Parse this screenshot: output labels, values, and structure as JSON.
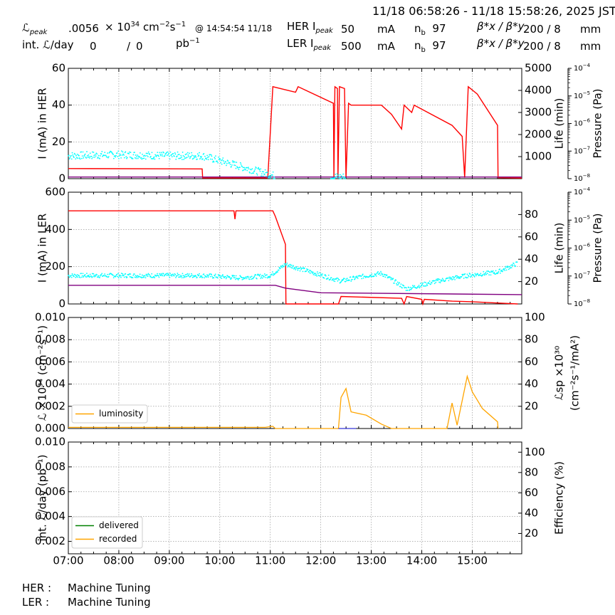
{
  "header": {
    "time_range": "11/18 06:58:26 - 11/18 15:58:26, 2025 JST",
    "lum_peak_label": "ℒ",
    "lum_peak_sub": "peak",
    "lum_peak_value": ".0056",
    "lum_peak_unit_pre": "× 10",
    "lum_peak_unit_exp": "34",
    "lum_peak_unit_post": " cm",
    "lum_peak_unit_exp2": "−2",
    "lum_peak_unit_post2": "s",
    "lum_peak_unit_exp3": "−1",
    "lum_peak_time": "@ 14:54:54 11/18",
    "int_lum_label": "int. ℒ/day",
    "int_lum_value1": "0",
    "int_lum_sep": "/",
    "int_lum_value2": "0",
    "int_lum_unit": "pb",
    "int_lum_unit_exp": "−1",
    "her_label": "HER I",
    "her_sub": "peak",
    "her_value": "50",
    "her_unit": "mA",
    "her_nb_label": "n",
    "her_nb_sub": "b",
    "her_nb_value": "97",
    "her_beta_label": "β*x / β*y",
    "her_beta_value": "200  / 8",
    "her_beta_unit": "mm",
    "ler_label": "LER I",
    "ler_sub": "peak",
    "ler_value": "500",
    "ler_unit": "mA",
    "ler_nb_label": "n",
    "ler_nb_sub": "b",
    "ler_nb_value": "97",
    "ler_beta_label": "β*x / β*y",
    "ler_beta_value": "200  / 8",
    "ler_beta_unit": "mm"
  },
  "footer": {
    "her_label": "HER :",
    "her_status": "Machine Tuning",
    "ler_label": "LER :",
    "ler_status": "Machine Tuning"
  },
  "colors": {
    "current": "#ff0000",
    "lifetime": "#00ffff",
    "pressure": "#800080",
    "luminosity": "#ffa500",
    "delivered": "#008000",
    "recorded": "#ffa500",
    "spec": "#0000cc",
    "grid": "#888888"
  },
  "chart_data": [
    {
      "type": "line",
      "panel": "her",
      "ylabel": "I (mA) in HER",
      "ylim": [
        0,
        60
      ],
      "yticks": [
        "0",
        "20",
        "40",
        "60"
      ],
      "y2label": "Life (min)",
      "y2lim": [
        0,
        5000
      ],
      "y2ticks": [
        "1000",
        "2000",
        "3000",
        "4000",
        "5000"
      ],
      "y3label": "Pressure (Pa)",
      "y3ticks": [
        "10",
        "10",
        "10",
        "10",
        "10"
      ],
      "y3ticks_exp": [
        "−8",
        "−7",
        "−6",
        "−5",
        "−4"
      ],
      "series": [
        {
          "role": "current",
          "points": [
            [
              7.0,
              5.5
            ],
            [
              9.65,
              5.3
            ],
            [
              9.66,
              0.4
            ],
            [
              10.95,
              0.4
            ],
            [
              11.05,
              50
            ],
            [
              11.5,
              47
            ],
            [
              11.55,
              50
            ],
            [
              12.25,
              41
            ],
            [
              12.26,
              0.5
            ],
            [
              12.28,
              50
            ],
            [
              12.33,
              49
            ],
            [
              12.34,
              0.5
            ],
            [
              12.37,
              50
            ],
            [
              12.47,
              49
            ],
            [
              12.5,
              0.5
            ],
            [
              12.55,
              41
            ],
            [
              12.6,
              40
            ],
            [
              12.9,
              40
            ],
            [
              13.2,
              40
            ],
            [
              13.4,
              35
            ],
            [
              13.6,
              27
            ],
            [
              13.65,
              40
            ],
            [
              13.8,
              36
            ],
            [
              13.85,
              40
            ],
            [
              14.6,
              29
            ],
            [
              14.8,
              23
            ],
            [
              14.85,
              0.5
            ],
            [
              14.92,
              50
            ],
            [
              15.1,
              46
            ],
            [
              15.5,
              29
            ],
            [
              15.51,
              0.5
            ],
            [
              15.98,
              0.3
            ]
          ]
        },
        {
          "role": "pressure_her",
          "points": [
            [
              7.0,
              0.9
            ],
            [
              15.98,
              0.9
            ]
          ]
        },
        {
          "role": "lifetime_her_scatter",
          "points": [
            [
              7.0,
              1000
            ],
            [
              8.0,
              1050
            ],
            [
              9.0,
              1000
            ],
            [
              9.65,
              1000
            ],
            [
              11.1,
              80
            ],
            [
              12.2,
              50
            ],
            [
              12.5,
              40
            ],
            [
              13.5,
              30
            ],
            [
              15.0,
              25
            ],
            [
              15.9,
              30
            ]
          ]
        }
      ]
    },
    {
      "type": "line",
      "panel": "ler",
      "ylabel": "I (mA) in LER",
      "ylim": [
        0,
        600
      ],
      "yticks": [
        "0",
        "200",
        "400",
        "600"
      ],
      "y2label": "Life (min)",
      "y2lim": [
        0,
        100
      ],
      "y2ticks": [
        "20",
        "40",
        "60",
        "80"
      ],
      "y3label": "Pressure (Pa)",
      "y3ticks": [
        "10",
        "10",
        "10",
        "10",
        "10"
      ],
      "y3ticks_exp": [
        "−8",
        "−7",
        "−6",
        "−5",
        "−4"
      ],
      "series": [
        {
          "role": "current",
          "points": [
            [
              7.0,
              500
            ],
            [
              10.28,
              500
            ],
            [
              10.3,
              455
            ],
            [
              10.32,
              500
            ],
            [
              11.05,
              500
            ],
            [
              11.1,
              470
            ],
            [
              11.3,
              320
            ],
            [
              11.31,
              0
            ],
            [
              12.35,
              0
            ],
            [
              12.4,
              40
            ],
            [
              13.6,
              30
            ],
            [
              13.65,
              0
            ],
            [
              13.7,
              40
            ],
            [
              14.0,
              25
            ],
            [
              14.02,
              0
            ],
            [
              14.05,
              25
            ],
            [
              14.6,
              15
            ],
            [
              15.0,
              12
            ],
            [
              15.5,
              5
            ],
            [
              15.9,
              0
            ]
          ]
        },
        {
          "role": "pressure_ler",
          "points": [
            [
              7.0,
              100
            ],
            [
              10.3,
              100
            ],
            [
              11.1,
              100
            ],
            [
              11.3,
              85
            ],
            [
              12.0,
              60
            ],
            [
              15.98,
              50
            ]
          ]
        },
        {
          "role": "lifetime_ler_scatter",
          "points": [
            [
              7.0,
              25
            ],
            [
              9.65,
              25
            ],
            [
              10.4,
              23
            ],
            [
              11.0,
              25
            ],
            [
              11.3,
              35
            ],
            [
              12.4,
              20
            ],
            [
              12.8,
              24
            ],
            [
              13.2,
              27
            ],
            [
              13.7,
              13
            ],
            [
              14.3,
              20
            ],
            [
              14.9,
              25
            ],
            [
              15.5,
              28
            ],
            [
              15.9,
              36
            ]
          ]
        }
      ]
    },
    {
      "type": "line",
      "panel": "luminosity",
      "ylabel": "ℒ ×10³⁴ (cm⁻²s⁻¹)",
      "ylim": [
        0,
        0.01
      ],
      "yticks": [
        "0.000",
        "0.002",
        "0.004",
        "0.006",
        "0.008",
        "0.010"
      ],
      "y2label": "ℒsp ×10³⁰",
      "y2label2": "(cm⁻²s⁻¹/mA²)",
      "y2lim": [
        0,
        100
      ],
      "y2ticks": [
        "20",
        "40",
        "60",
        "80",
        "100"
      ],
      "legend": [
        "luminosity"
      ],
      "legend_loc": "lower-left",
      "series": [
        {
          "role": "luminosity",
          "name": "luminosity",
          "points": [
            [
              7.0,
              0.0001
            ],
            [
              9.7,
              0.0001
            ],
            [
              10.9,
              0.0001
            ],
            [
              11.05,
              0.0002
            ],
            [
              11.1,
              0.0
            ],
            [
              12.35,
              0.0
            ],
            [
              12.4,
              0.0028
            ],
            [
              12.5,
              0.0036
            ],
            [
              12.6,
              0.0015
            ],
            [
              12.9,
              0.0012
            ],
            [
              13.2,
              0.0004
            ],
            [
              13.4,
              0.0
            ],
            [
              14.5,
              0.0
            ],
            [
              14.6,
              0.0023
            ],
            [
              14.7,
              0.0003
            ],
            [
              14.9,
              0.0047
            ],
            [
              15.0,
              0.0033
            ],
            [
              15.2,
              0.0018
            ],
            [
              15.5,
              0.0006
            ],
            [
              15.51,
              0.0
            ]
          ]
        },
        {
          "role": "spec",
          "points": [
            [
              12.35,
              0.0
            ],
            [
              12.6,
              0.0
            ],
            [
              12.7,
              0.0
            ]
          ]
        }
      ]
    },
    {
      "type": "line",
      "panel": "int_lum",
      "ylabel": "int. ℒ/day (pb⁻¹)",
      "ylim": [
        0.001,
        0.01
      ],
      "yticks": [
        "0.002",
        "0.004",
        "0.006",
        "0.008",
        "0.010"
      ],
      "y2label": "Efficiency (%)",
      "y2lim": [
        0,
        110
      ],
      "y2ticks": [
        "20",
        "40",
        "60",
        "80",
        "100"
      ],
      "legend": [
        "delivered",
        "recorded"
      ],
      "legend_loc": "lower-left",
      "xlim": [
        7.0,
        15.98
      ],
      "xticks": [
        "07:00",
        "08:00",
        "09:00",
        "10:00",
        "11:00",
        "12:00",
        "13:00",
        "14:00",
        "15:00"
      ]
    }
  ]
}
